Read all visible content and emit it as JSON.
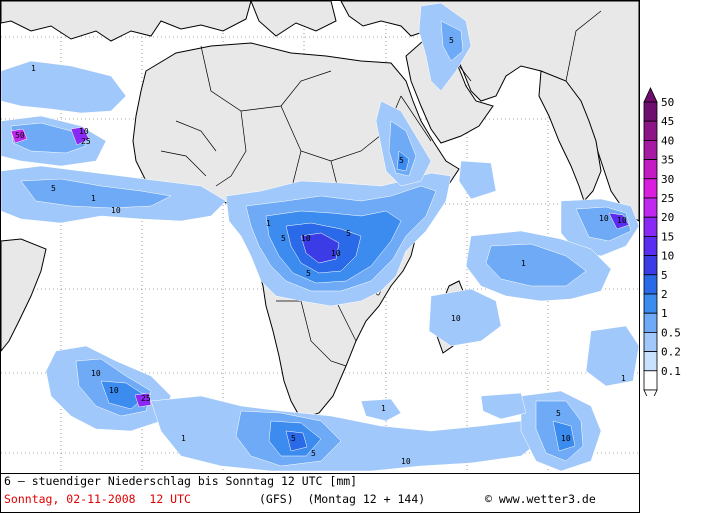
{
  "footer": {
    "title_line": "6 – stuendiger Niederschlag bis Sonntag 12 UTC [mm]",
    "date_line": "Sonntag, 02-11-2008  12 UTC",
    "model_line": "(GFS)  (Montag 12 + 144)",
    "credit_line": "© www.wetter3.de"
  },
  "legend": {
    "levels": [
      {
        "label": "50",
        "color": "#6e0f6e"
      },
      {
        "label": "45",
        "color": "#8c1487"
      },
      {
        "label": "40",
        "color": "#a61aa3"
      },
      {
        "label": "35",
        "color": "#c21cc2"
      },
      {
        "label": "30",
        "color": "#d91ee0"
      },
      {
        "label": "25",
        "color": "#c028f0"
      },
      {
        "label": "20",
        "color": "#8a28f5"
      },
      {
        "label": "15",
        "color": "#5a2df0"
      },
      {
        "label": "10",
        "color": "#3c3ce6"
      },
      {
        "label": "5",
        "color": "#2a6ae8"
      },
      {
        "label": "2",
        "color": "#3c8cf0"
      },
      {
        "label": "1",
        "color": "#6eaaf5"
      },
      {
        "label": "0.5",
        "color": "#a0c8fa"
      },
      {
        "label": "0.2",
        "color": "#c8e1fc"
      },
      {
        "label": "0.1",
        "color": "#e6f2ff"
      }
    ]
  },
  "map_labels": [
    {
      "text": "1"
    },
    {
      "text": "5"
    },
    {
      "text": "10"
    },
    {
      "text": "25"
    },
    {
      "text": "50"
    }
  ]
}
